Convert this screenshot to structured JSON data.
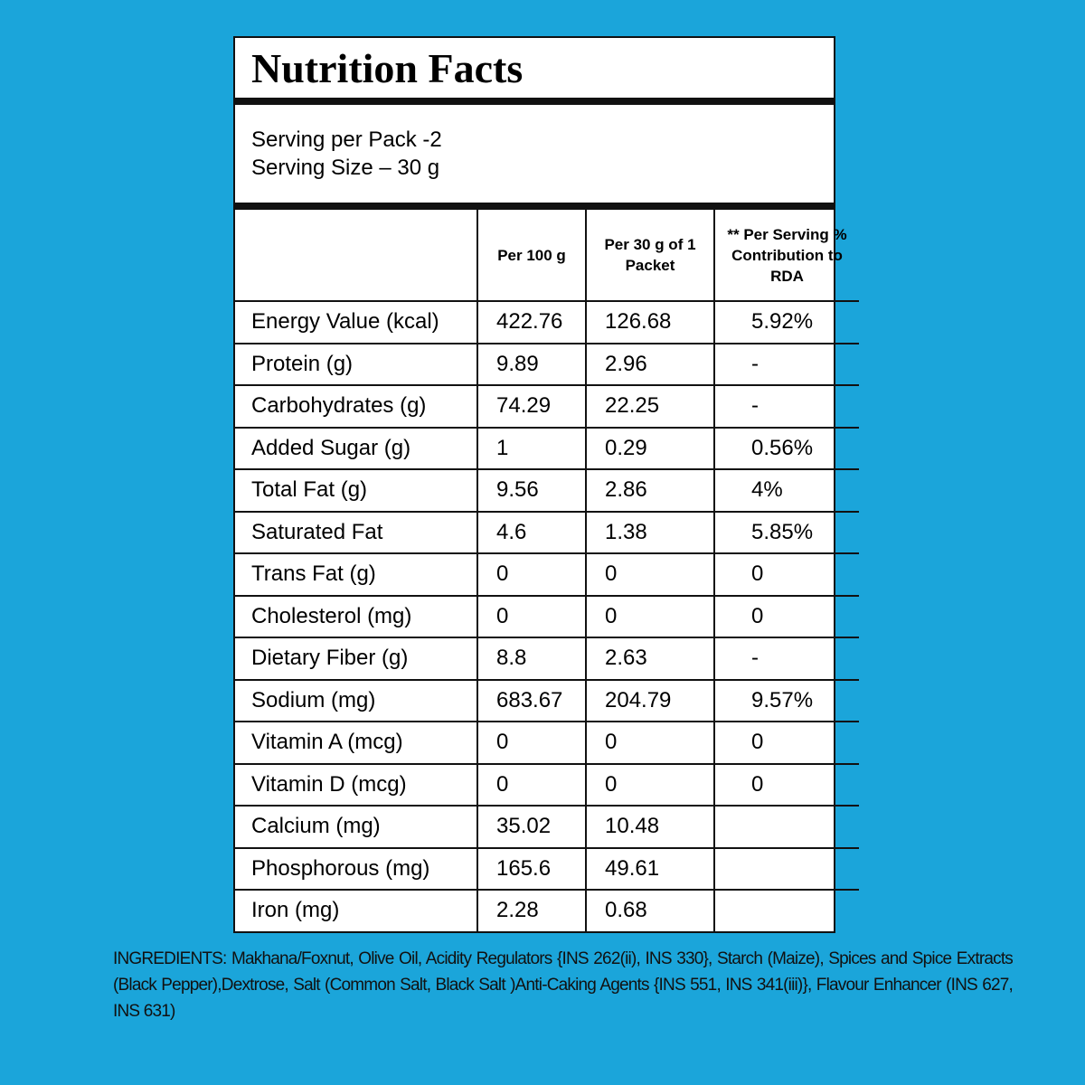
{
  "header": {
    "title": "Nutrition Facts"
  },
  "serving": {
    "lines": [
      "Serving per Pack -2",
      "Serving Size – 30 g"
    ]
  },
  "table": {
    "columns": [
      "Per 100 g",
      "Per 30 g of 1 Packet",
      "** Per Serving % Contribution to RDA"
    ],
    "rows": [
      [
        "Energy Value (kcal)",
        "422.76",
        "126.68",
        "5.92%"
      ],
      [
        "Protein (g)",
        "9.89",
        "2.96",
        "-"
      ],
      [
        "Carbohydrates (g)",
        "74.29",
        "22.25",
        "-"
      ],
      [
        "Added Sugar (g)",
        "1",
        "0.29",
        "0.56%"
      ],
      [
        "Total Fat (g)",
        "9.56",
        "2.86",
        "4%"
      ],
      [
        "Saturated Fat",
        "4.6",
        "1.38",
        "5.85%"
      ],
      [
        "Trans Fat (g)",
        "0",
        "0",
        "0"
      ],
      [
        "Cholesterol (mg)",
        "0",
        "0",
        "0"
      ],
      [
        "Dietary Fiber (g)",
        "8.8",
        "2.63",
        "-"
      ],
      [
        "Sodium (mg)",
        "683.67",
        "204.79",
        "9.57%"
      ],
      [
        "Vitamin A (mcg)",
        "0",
        "0",
        "0"
      ],
      [
        "Vitamin D (mcg)",
        "0",
        "0",
        "0"
      ],
      [
        "Calcium (mg)",
        "35.02",
        "10.48"
      ],
      [
        "Phosphorous (mg)",
        "165.6",
        "49.61"
      ],
      [
        "Iron (mg)",
        "2.28",
        "0.68"
      ]
    ]
  },
  "ingredients": "INGREDIENTS: Makhana/Foxnut, Olive Oil, Acidity Regulators {INS 262(ii), INS 330}, Starch (Maize), Spices and Spice Extracts (Black Pepper),Dextrose, Salt (Common Salt, Black Salt )Anti-Caking Agents {INS 551, INS 341(iii)}, Flavour Enhancer (INS 627, INS 631)"
}
